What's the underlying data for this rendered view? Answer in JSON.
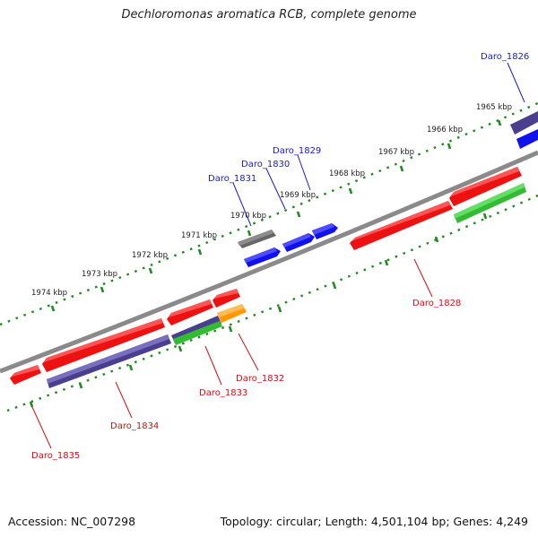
{
  "title": "Dechloromonas aromatica RCB, complete genome",
  "footer": {
    "accession": "Accession: NC_007298",
    "summary": "Topology: circular; Length: 4,501,104 bp; Genes: 4,249"
  },
  "scale_labels": [
    "1965 kbp",
    "1966 kbp",
    "1967 kbp",
    "1968 kbp",
    "1969 kbp",
    "1970 kbp",
    "1971 kbp",
    "1972 kbp",
    "1973 kbp",
    "1974 kbp"
  ],
  "gene_labels_top": [
    "Daro_1826",
    "Daro_1829",
    "Daro_1830",
    "Daro_1831"
  ],
  "gene_labels_bottom": [
    "Daro_1828",
    "Daro_1832",
    "Daro_1833",
    "Daro_1834",
    "Daro_1835"
  ],
  "colors": {
    "red": "#ee1111",
    "blue": "#1111ee",
    "slate": "#4a3f8f",
    "gray": "#666666",
    "green": "#33bb33",
    "orange": "#ff9900",
    "backbone": "#8a8a8a",
    "ticks": "#228822"
  }
}
